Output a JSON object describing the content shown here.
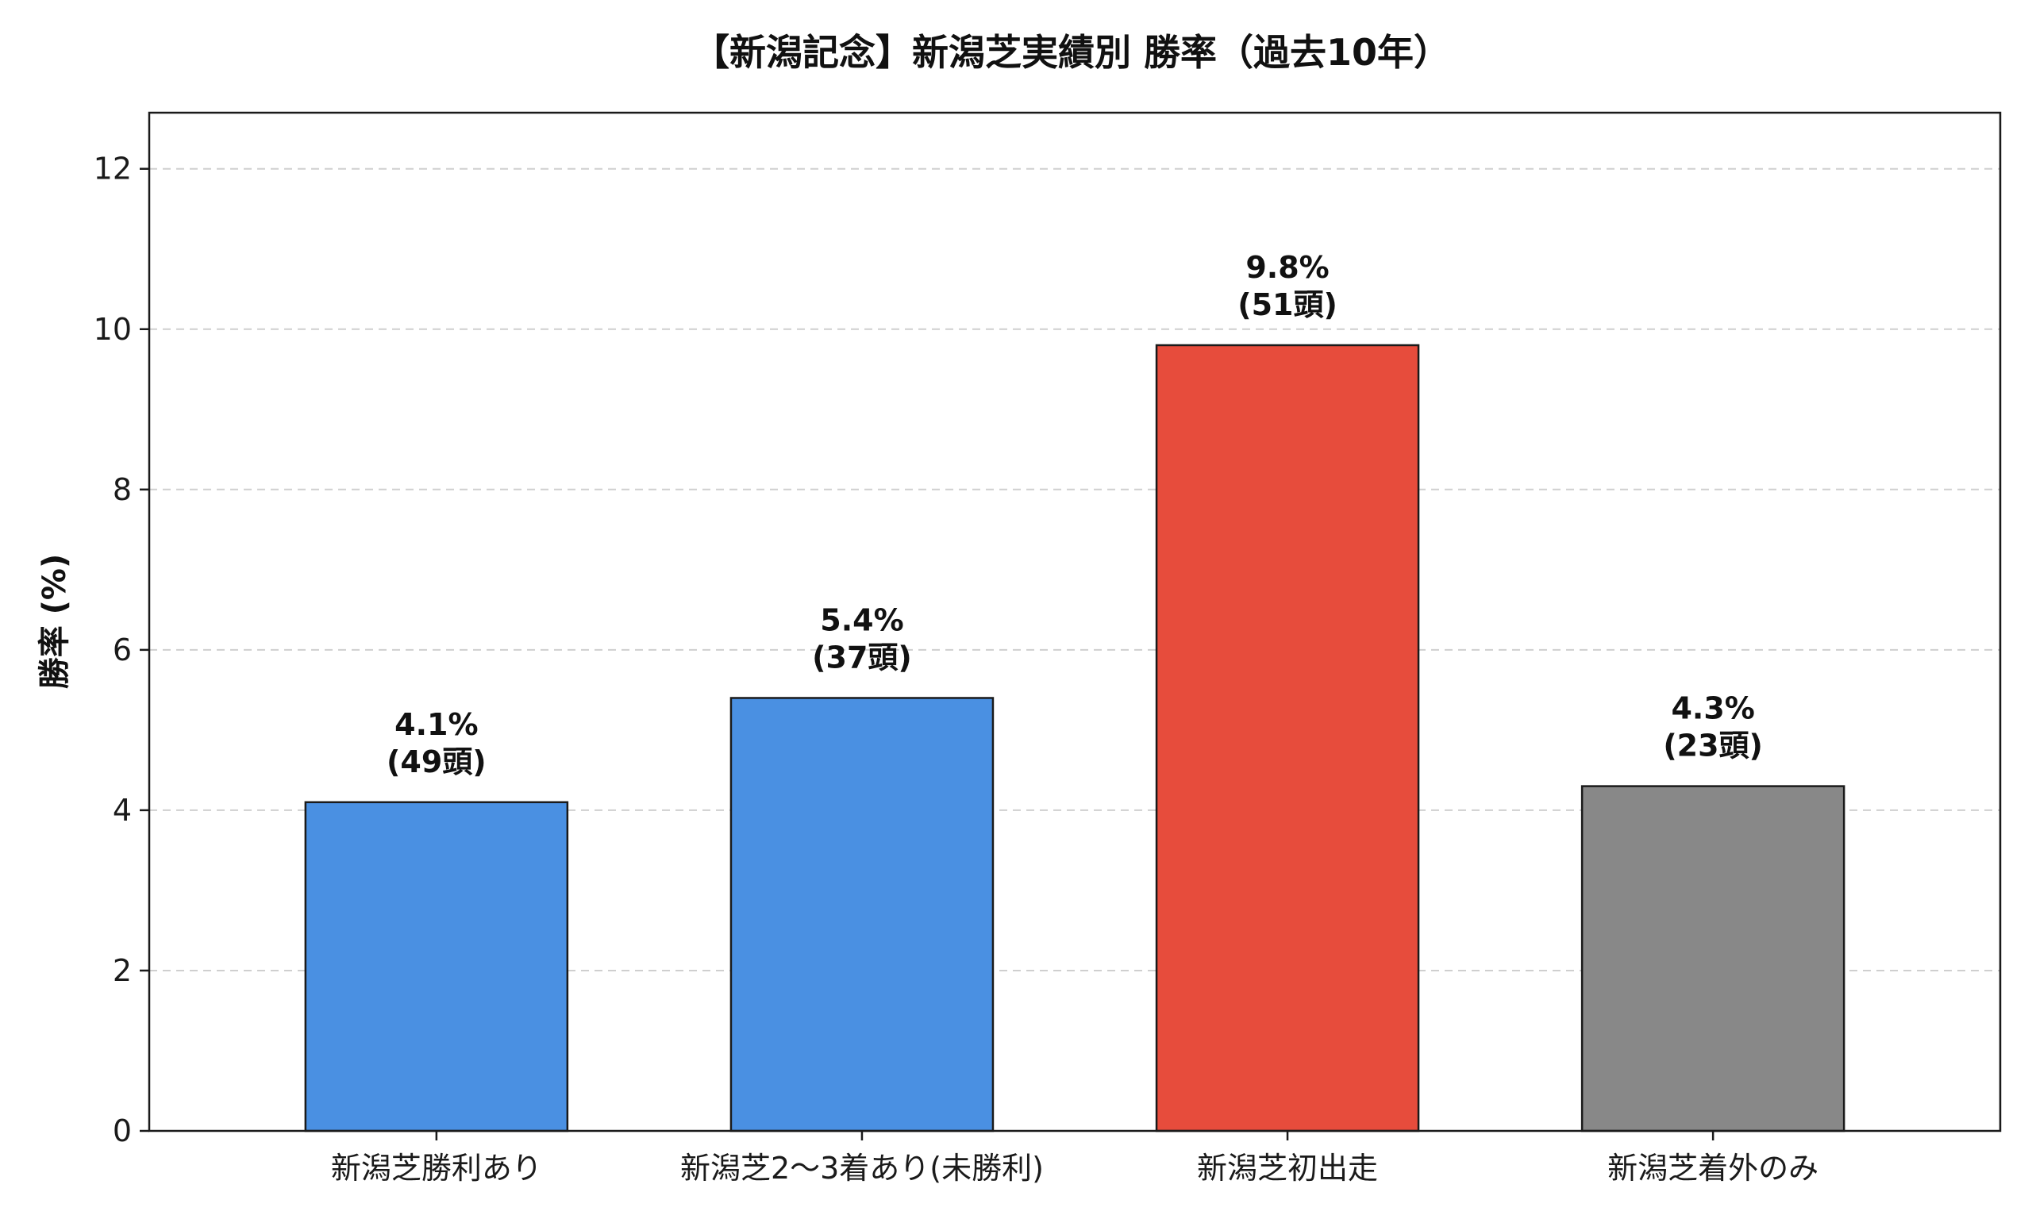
{
  "chart_data": {
    "type": "bar",
    "title": "【新潟記念】新潟芝実績別 勝率（過去10年）",
    "xlabel": "",
    "ylabel": "勝率 (%)",
    "ylim": [
      0,
      12.7
    ],
    "yticks": [
      0,
      2,
      4,
      6,
      8,
      10,
      12
    ],
    "grid": "y-dashed",
    "categories": [
      "新潟芝勝利あり",
      "新潟芝2〜3着あり(未勝利)",
      "新潟芝初出走",
      "新潟芝着外のみ"
    ],
    "values": [
      4.1,
      5.4,
      9.8,
      4.3
    ],
    "value_labels": [
      "4.1%",
      "5.4%",
      "9.8%",
      "4.3%"
    ],
    "count_labels": [
      "(49頭)",
      "(37頭)",
      "(51頭)",
      "(23頭)"
    ],
    "colors": [
      "#4a90e2",
      "#4a90e2",
      "#e74c3c",
      "#888888"
    ]
  }
}
